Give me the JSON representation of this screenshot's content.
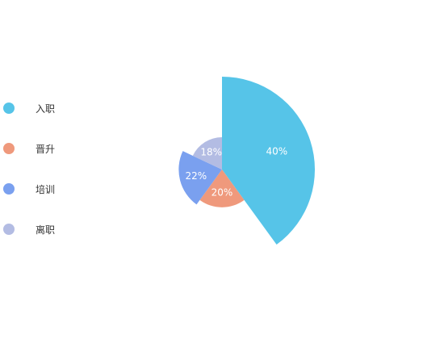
{
  "chart_data": {
    "type": "pie",
    "variant": "rose",
    "categories": [
      "入职",
      "晋升",
      "培训",
      "离职"
    ],
    "values": [
      40,
      20,
      22,
      18
    ],
    "data_labels": [
      "40%",
      "20%",
      "22%",
      "18%"
    ],
    "colors": [
      "#56c4e8",
      "#ef997c",
      "#7aa0ef",
      "#b3bce3"
    ],
    "legend_position": "left",
    "title": "",
    "xlabel": "",
    "ylabel": ""
  },
  "legend": {
    "items": [
      {
        "label": "入职",
        "color": "#56c4e8"
      },
      {
        "label": "晋升",
        "color": "#ef997c"
      },
      {
        "label": "培训",
        "color": "#7aa0ef"
      },
      {
        "label": "离职",
        "color": "#b3bce3"
      }
    ]
  }
}
